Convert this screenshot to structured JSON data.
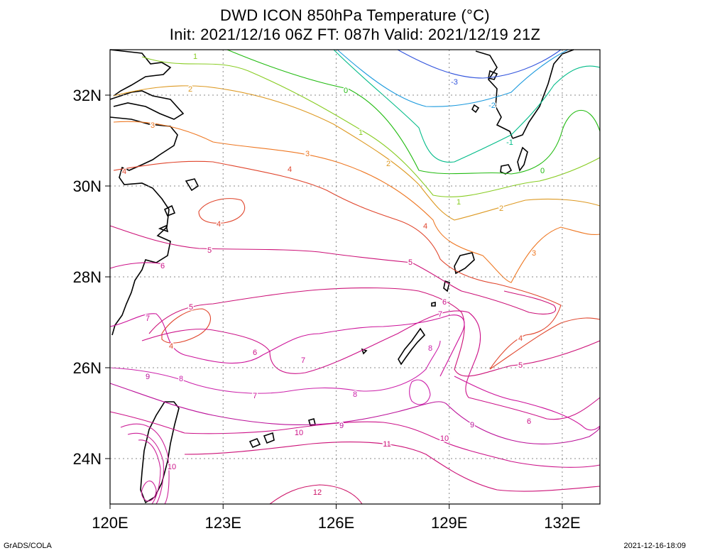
{
  "title": {
    "line1": "DWD ICON 850hPa Temperature (°C)",
    "line2": "Init: 2021/12/16 06Z  FT: 087h  Valid: 2021/12/19 21Z"
  },
  "map": {
    "lon_range": [
      120,
      133
    ],
    "lat_range": [
      23,
      33
    ],
    "x_ticks": [
      "120E",
      "123E",
      "126E",
      "129E",
      "132E"
    ],
    "y_ticks": [
      "32N",
      "30N",
      "28N",
      "26N",
      "24N"
    ],
    "grid": true
  },
  "contours": [
    {
      "level": "-3",
      "color": "#3355dd"
    },
    {
      "level": "-2",
      "color": "#1a99dd"
    },
    {
      "level": "-1",
      "color": "#00bb88"
    },
    {
      "level": "0",
      "color": "#22bb11"
    },
    {
      "level": "1",
      "color": "#88cc22"
    },
    {
      "level": "2",
      "color": "#dd9922"
    },
    {
      "level": "3",
      "color": "#ee7722"
    },
    {
      "level": "4",
      "color": "#e0452c"
    },
    {
      "level": "5",
      "color": "#cc1177"
    },
    {
      "level": "6",
      "color": "#cc1188"
    },
    {
      "level": "7",
      "color": "#cc1199"
    },
    {
      "level": "8",
      "color": "#cc22aa"
    },
    {
      "level": "9",
      "color": "#bb1199"
    },
    {
      "level": "10",
      "color": "#cc1188"
    },
    {
      "level": "11",
      "color": "#cc1177"
    },
    {
      "level": "12",
      "color": "#cc1166"
    }
  ],
  "footer": {
    "credit": "GrADS/COLA",
    "timestamp": "2021-12-16-18:09"
  }
}
